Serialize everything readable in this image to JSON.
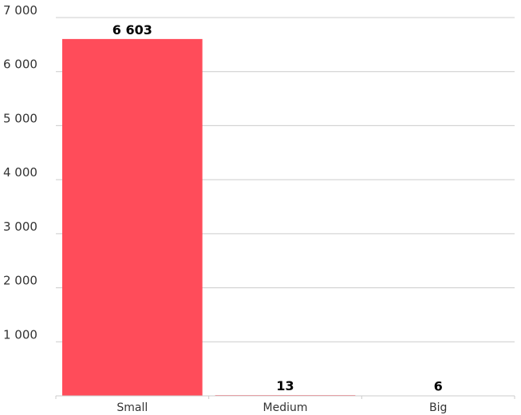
{
  "chart_data": {
    "type": "bar",
    "title": "",
    "xlabel": "",
    "ylabel": "",
    "categories": [
      "Small",
      "Medium",
      "Big"
    ],
    "values": [
      6603,
      13,
      6
    ],
    "value_labels": [
      "6 603",
      "13",
      "6"
    ],
    "ylim": [
      0,
      7000
    ],
    "yticks": [
      1000,
      2000,
      3000,
      4000,
      5000,
      6000,
      7000
    ],
    "ytick_labels": [
      "1 000",
      "2 000",
      "3 000",
      "4 000",
      "5 000",
      "6 000",
      "7 000"
    ],
    "grid": true,
    "legend": "none",
    "bar_color": "#ff4c5a"
  }
}
